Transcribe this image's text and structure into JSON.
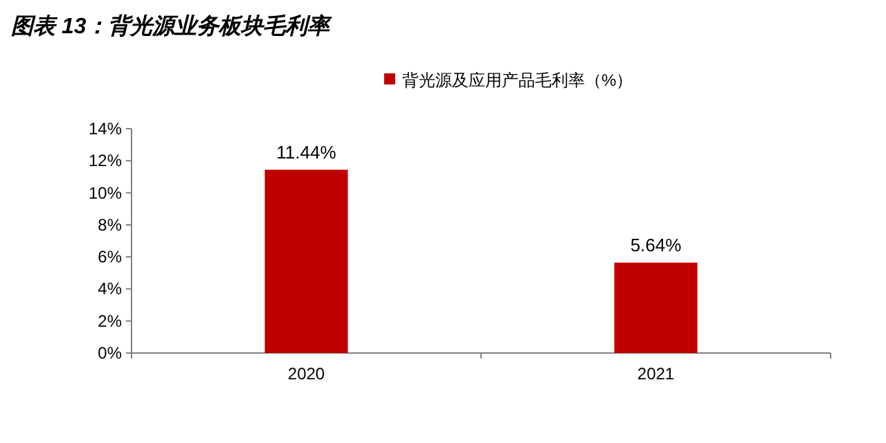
{
  "chart_data": {
    "type": "bar",
    "title": "图表 13：背光源业务板块毛利率",
    "categories": [
      "2020",
      "2021"
    ],
    "series": [
      {
        "name": "背光源及应用产品毛利率（%）",
        "color": "#c00000",
        "values": [
          11.44,
          5.64
        ],
        "value_labels": [
          "11.44%",
          "5.64%"
        ]
      }
    ],
    "ylim": [
      0,
      14
    ],
    "yticks": [
      {
        "value": 0,
        "label": "0%"
      },
      {
        "value": 2,
        "label": "2%"
      },
      {
        "value": 4,
        "label": "4%"
      },
      {
        "value": 6,
        "label": "6%"
      },
      {
        "value": 8,
        "label": "8%"
      },
      {
        "value": 10,
        "label": "10%"
      },
      {
        "value": 12,
        "label": "12%"
      },
      {
        "value": 14,
        "label": "14%"
      }
    ],
    "grid": false,
    "legend": "top"
  }
}
